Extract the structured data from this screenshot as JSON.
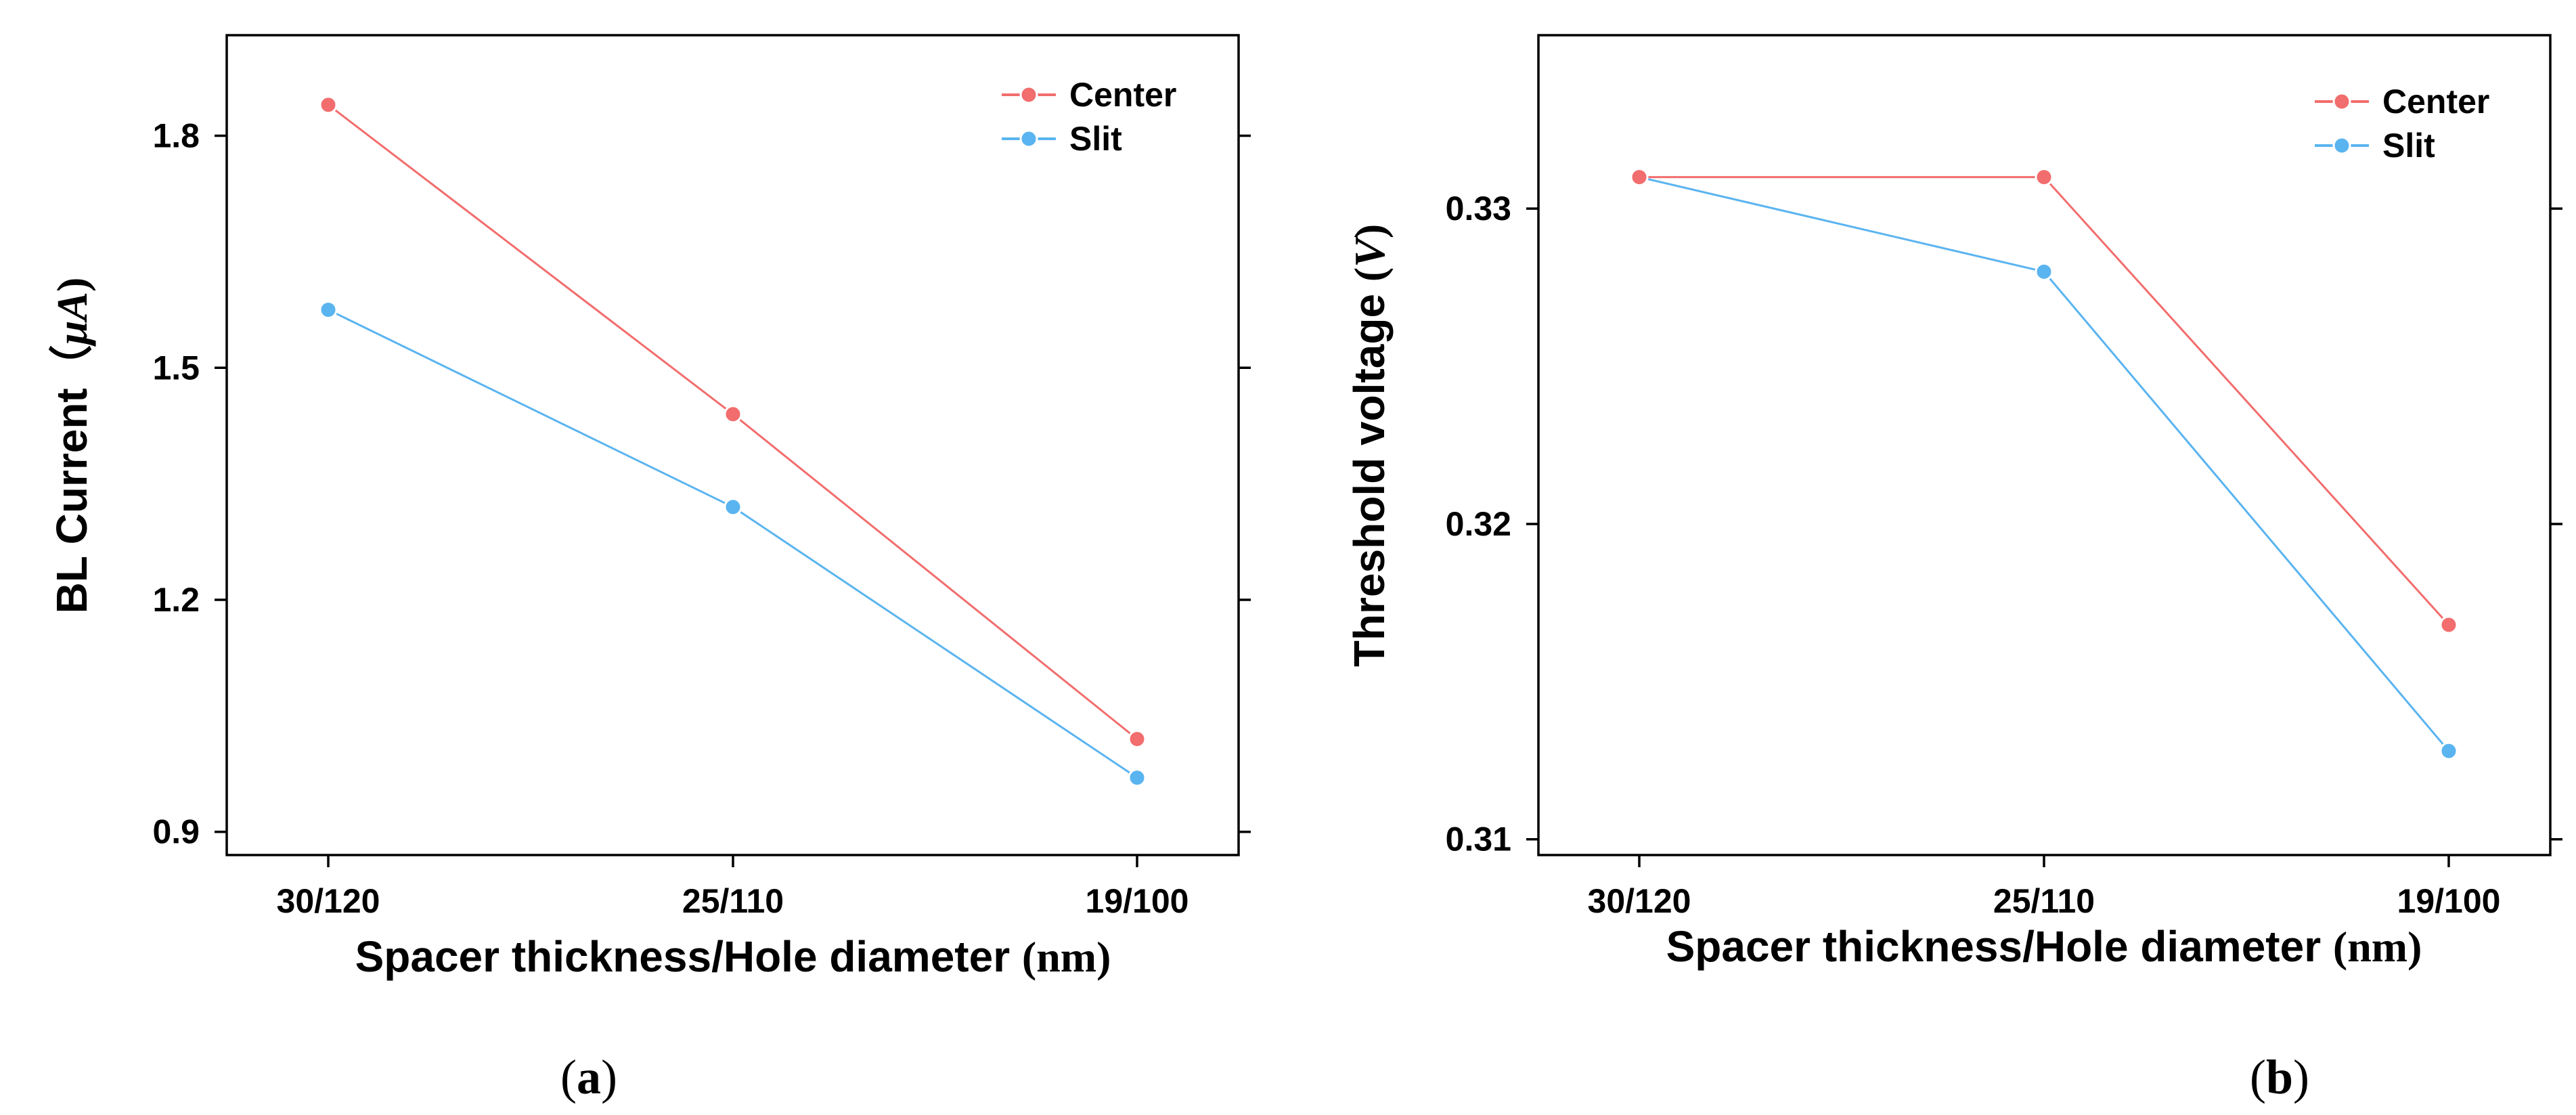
{
  "chart_data": [
    {
      "type": "line",
      "panel": "a",
      "categories": [
        "30/120",
        "25/110",
        "19/100"
      ],
      "series": [
        {
          "name": "Center",
          "color": "#f26d6d",
          "values": [
            1.84,
            1.44,
            1.02
          ]
        },
        {
          "name": "Slit",
          "color": "#5ab4f0",
          "values": [
            1.575,
            1.32,
            0.97
          ]
        }
      ],
      "ylim": [
        0.87,
        1.93
      ],
      "yticks": [
        0.9,
        1.2,
        1.5,
        1.8
      ],
      "ytick_labels": [
        "0.9",
        "1.2",
        "1.5",
        "1.8"
      ],
      "xlabel": "Spacer thickness/Hole diameter ",
      "xlabel_unit": "(nm)",
      "ylabel": "BL Current",
      "ylabel_unit_open": "（",
      "ylabel_unit_symbol": "μA",
      "ylabel_unit_close": ")",
      "legend": "top-right",
      "caption_open": "(",
      "caption_letter": "a",
      "caption_close": ")"
    },
    {
      "type": "line",
      "panel": "b",
      "categories": [
        "30/120",
        "25/110",
        "19/100"
      ],
      "series": [
        {
          "name": "Center",
          "color": "#f26d6d",
          "values": [
            0.331,
            0.331,
            0.3168
          ]
        },
        {
          "name": "Slit",
          "color": "#5ab4f0",
          "values": [
            0.331,
            0.328,
            0.3128
          ]
        }
      ],
      "ylim": [
        0.3095,
        0.3355
      ],
      "yticks": [
        0.31,
        0.32,
        0.33
      ],
      "ytick_labels": [
        "0.31",
        "0.32",
        "0.33"
      ],
      "xlabel": "Spacer thickness/Hole diameter ",
      "xlabel_unit": "(nm)",
      "ylabel": "Threshold voltage ",
      "ylabel_unit_open": "(",
      "ylabel_unit_symbol": "V",
      "ylabel_unit_close": ")",
      "legend": "top-right",
      "caption_open": "(",
      "caption_letter": "b",
      "caption_close": ")"
    }
  ]
}
